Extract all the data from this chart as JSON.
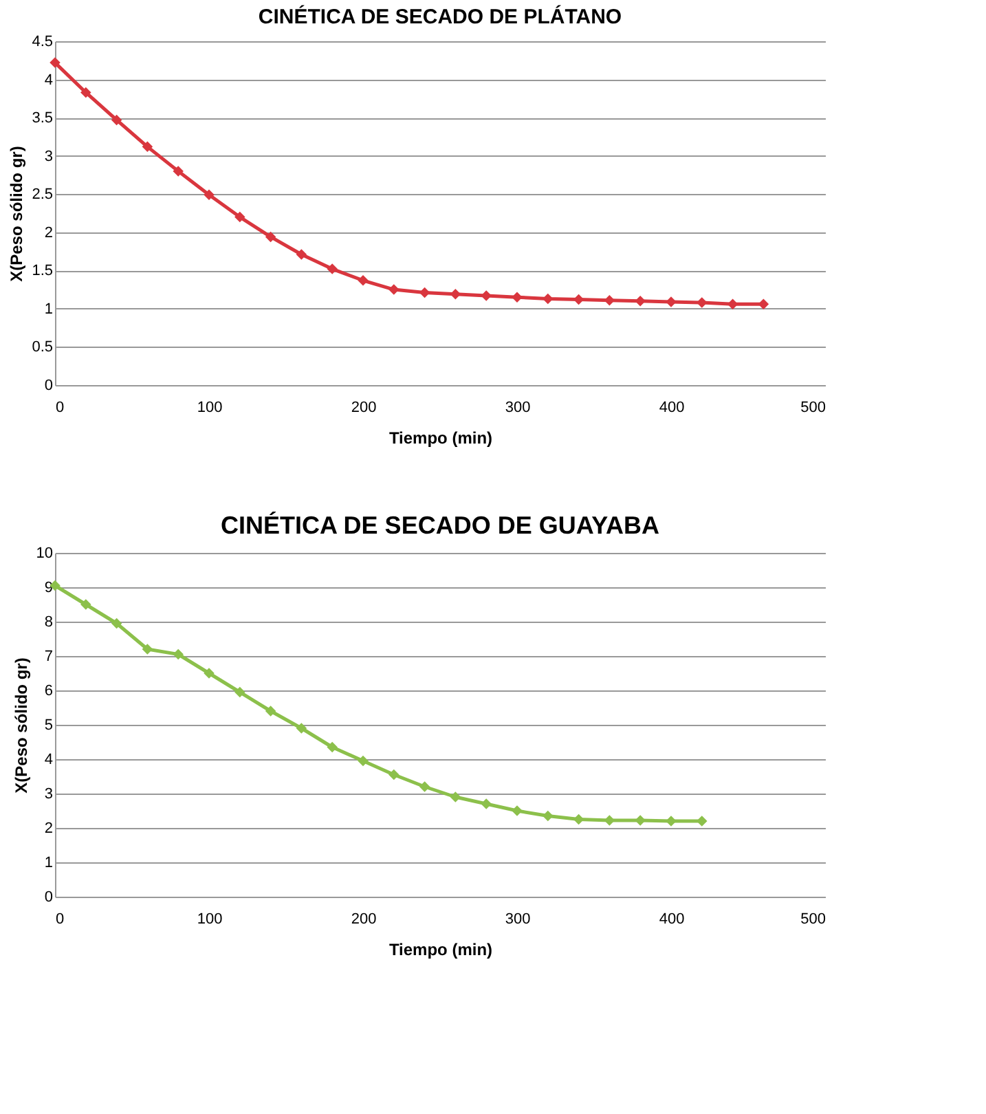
{
  "chart_data": [
    {
      "type": "line",
      "title": "CINÉTICA DE SECADO DE PLÁTANO",
      "xlabel": "Tiempo (min)",
      "ylabel": "X(Peso sólido gr)",
      "x": [
        0,
        20,
        40,
        60,
        80,
        100,
        120,
        140,
        160,
        180,
        200,
        220,
        240,
        260,
        280,
        300,
        320,
        340,
        360,
        380,
        400,
        420,
        440,
        460
      ],
      "series": [
        {
          "color": "#d9363e",
          "values": [
            4.22,
            3.83,
            3.47,
            3.12,
            2.8,
            2.49,
            2.2,
            1.94,
            1.71,
            1.52,
            1.37,
            1.25,
            1.21,
            1.19,
            1.17,
            1.15,
            1.13,
            1.12,
            1.11,
            1.1,
            1.09,
            1.08,
            1.06,
            1.06
          ]
        }
      ],
      "xlim": [
        0,
        500
      ],
      "xticks": [
        0,
        100,
        200,
        300,
        400,
        500
      ],
      "ylim": [
        0,
        4.5
      ],
      "yticks": [
        0,
        0.5,
        1,
        1.5,
        2,
        2.5,
        3,
        3.5,
        4,
        4.5
      ],
      "grid": "y",
      "marker": "diamond",
      "line_style": "solid"
    },
    {
      "type": "line",
      "title": "CINÉTICA DE SECADO DE GUAYABA",
      "xlabel": "Tiempo (min)",
      "ylabel": "X(Peso sólido gr)",
      "x": [
        0,
        20,
        40,
        60,
        80,
        100,
        120,
        140,
        160,
        180,
        200,
        220,
        240,
        260,
        280,
        300,
        320,
        340,
        360,
        380,
        400,
        420
      ],
      "series": [
        {
          "color": "#8cc04b",
          "values": [
            9.05,
            8.5,
            7.95,
            7.2,
            7.05,
            6.5,
            5.95,
            5.4,
            4.9,
            4.35,
            3.95,
            3.55,
            3.2,
            2.9,
            2.7,
            2.5,
            2.35,
            2.25,
            2.22,
            2.22,
            2.2,
            2.2
          ]
        }
      ],
      "xlim": [
        0,
        500
      ],
      "xticks": [
        0,
        100,
        200,
        300,
        400,
        500
      ],
      "ylim": [
        0,
        10
      ],
      "yticks": [
        0,
        1,
        2,
        3,
        4,
        5,
        6,
        7,
        8,
        9,
        10
      ],
      "grid": "y",
      "marker": "diamond",
      "line_style": "solid"
    }
  ]
}
